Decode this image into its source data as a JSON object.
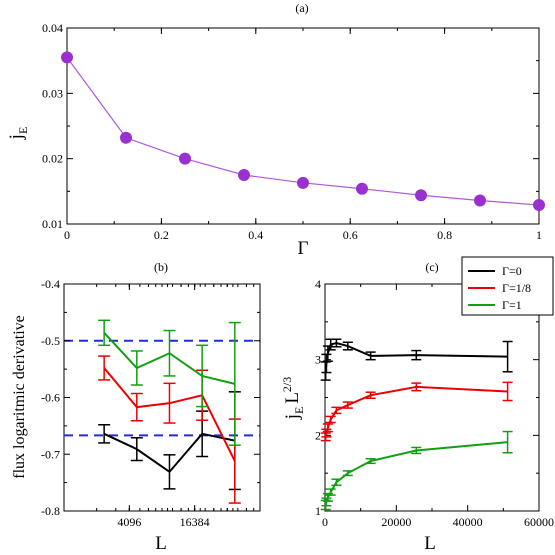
{
  "chart_data": [
    {
      "panel": "(a)",
      "type": "line",
      "title": "(a)",
      "xlabel": "Γ",
      "ylabel": "j",
      "ylabel_sub": "E",
      "xlim": [
        0,
        1
      ],
      "ylim": [
        0.01,
        0.04
      ],
      "xticks": [
        0,
        0.2,
        0.4,
        0.6,
        0.8,
        1
      ],
      "xtick_labels": [
        "0",
        "0.2",
        "0.4",
        "0.6",
        "0.8",
        "1"
      ],
      "yticks": [
        0.01,
        0.02,
        0.03,
        0.04
      ],
      "ytick_labels": [
        "0.01",
        "0.02",
        "0.03",
        "0.04"
      ],
      "color": "#9b30d0",
      "line_color": "#b05ad9",
      "x": [
        0,
        0.125,
        0.25,
        0.375,
        0.5,
        0.625,
        0.75,
        0.875,
        1
      ],
      "y": [
        0.0355,
        0.0232,
        0.02,
        0.0175,
        0.0163,
        0.0154,
        0.0144,
        0.0136,
        0.0129
      ]
    },
    {
      "panel": "(b)",
      "type": "line",
      "title": "(b)",
      "xlabel": "L",
      "ylabel": "flux logaritmic derivative",
      "xscale": "log2",
      "xlim": [
        1024,
        65536
      ],
      "ylim": [
        -0.8,
        -0.4
      ],
      "xticks": [
        4096,
        16384
      ],
      "xtick_labels": [
        "4096",
        "16384"
      ],
      "yticks": [
        -0.8,
        -0.7,
        -0.6,
        -0.5,
        -0.4
      ],
      "ytick_labels": [
        "-0.8",
        "-0.7",
        "-0.6",
        "-0.5",
        "-0.4"
      ],
      "reference_lines": [
        {
          "y": -0.5,
          "color": "#1f2fd6",
          "style": "dashed"
        },
        {
          "y": -0.6667,
          "color": "#1f2fd6",
          "style": "dashed"
        }
      ],
      "series": [
        {
          "color": "#000000",
          "x": [
            2400,
            4800,
            9600,
            19200,
            38400
          ],
          "y": [
            -0.664,
            -0.691,
            -0.731,
            -0.664,
            -0.676
          ],
          "err": [
            0.016,
            0.02,
            0.03,
            0.04,
            0.086
          ]
        },
        {
          "color": "#ee0000",
          "x": [
            2400,
            4800,
            9600,
            19200,
            38400
          ],
          "y": [
            -0.548,
            -0.617,
            -0.61,
            -0.596,
            -0.712
          ],
          "err": [
            0.021,
            0.024,
            0.035,
            0.044,
            0.074
          ]
        },
        {
          "color": "#12a012",
          "x": [
            2400,
            4800,
            9600,
            19200,
            38400
          ],
          "y": [
            -0.486,
            -0.548,
            -0.522,
            -0.562,
            -0.576
          ],
          "err": [
            0.022,
            0.03,
            0.04,
            0.054,
            0.108
          ]
        }
      ]
    },
    {
      "panel": "(c)",
      "type": "line",
      "title": "(c)",
      "xlabel": "L",
      "ylabel_parts": [
        "j",
        "E",
        "L",
        "2/3"
      ],
      "xlim": [
        0,
        60000
      ],
      "ylim": [
        1,
        4
      ],
      "xticks": [
        0,
        20000,
        40000,
        60000
      ],
      "xtick_labels": [
        "0",
        "20000",
        "40000",
        "60000"
      ],
      "yticks": [
        1,
        2,
        3,
        4
      ],
      "ytick_labels": [
        "1",
        "2",
        "3",
        "4"
      ],
      "legend": "top-right",
      "series": [
        {
          "name": "Γ=0",
          "color": "#000000",
          "x": [
            200,
            400,
            800,
            1600,
            3200,
            6400,
            12800,
            25600,
            51200
          ],
          "y": [
            2.85,
            2.95,
            3.08,
            3.2,
            3.22,
            3.18,
            3.05,
            3.06,
            3.04
          ],
          "err": [
            0.12,
            0.12,
            0.1,
            0.07,
            0.05,
            0.05,
            0.05,
            0.06,
            0.2
          ]
        },
        {
          "name": "Γ=1/8",
          "color": "#ee0000",
          "x": [
            200,
            400,
            800,
            1600,
            3200,
            6400,
            12800,
            25600,
            51200
          ],
          "y": [
            1.98,
            2.03,
            2.1,
            2.21,
            2.33,
            2.4,
            2.53,
            2.64,
            2.58
          ],
          "err": [
            0.05,
            0.05,
            0.05,
            0.04,
            0.04,
            0.04,
            0.04,
            0.05,
            0.12
          ]
        },
        {
          "name": "Γ=1",
          "color": "#12a012",
          "x": [
            200,
            400,
            800,
            1600,
            3200,
            6400,
            12800,
            25600,
            51200
          ],
          "y": [
            1.08,
            1.12,
            1.18,
            1.25,
            1.38,
            1.5,
            1.66,
            1.8,
            1.91
          ],
          "err": [
            0.06,
            0.05,
            0.05,
            0.04,
            0.04,
            0.03,
            0.03,
            0.04,
            0.14
          ]
        }
      ]
    }
  ]
}
